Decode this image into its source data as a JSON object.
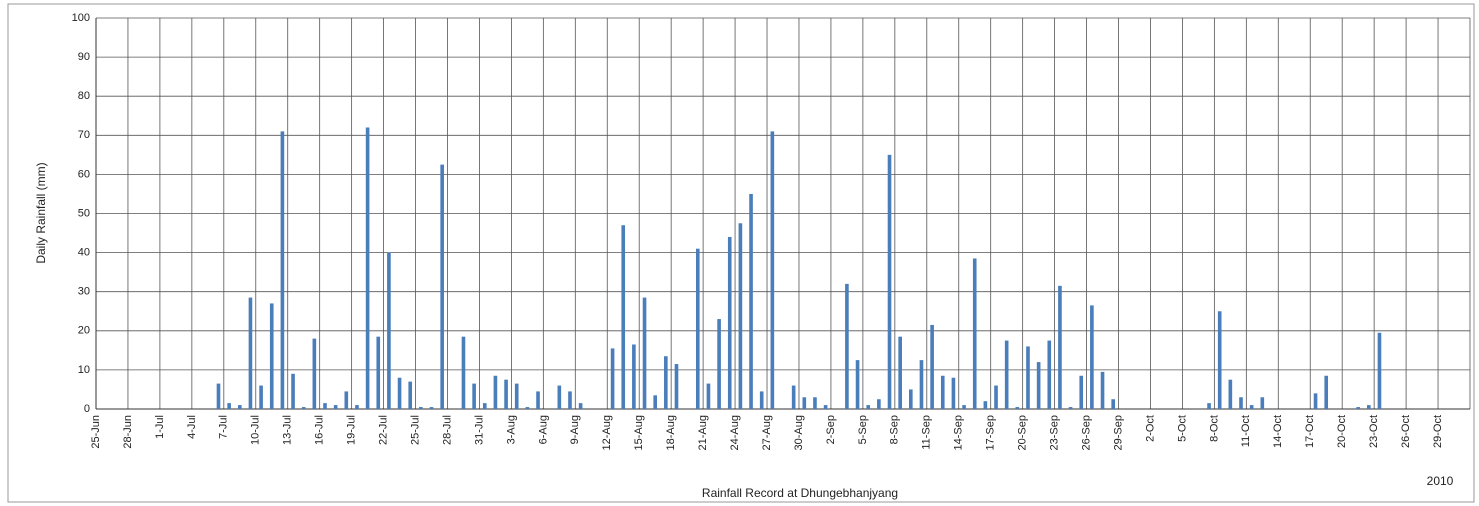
{
  "chart_data": {
    "type": "bar",
    "y_label": "Daily Rainfall (mm)",
    "x_label": "Rainfall Record at Dhungebhanjyang",
    "annotation": "2010",
    "color": "#4a7ebb",
    "ylim": [
      0,
      100
    ],
    "yticks": [
      0,
      10,
      20,
      30,
      40,
      50,
      60,
      70,
      80,
      90,
      100
    ],
    "grid": true,
    "categories": [
      "25-Jun",
      null,
      null,
      "28-Jun",
      null,
      null,
      "1-Jul",
      null,
      null,
      "4-Jul",
      null,
      null,
      "7-Jul",
      null,
      null,
      "10-Jul",
      null,
      null,
      "13-Jul",
      null,
      null,
      "16-Jul",
      null,
      null,
      "19-Jul",
      null,
      null,
      "22-Jul",
      null,
      null,
      "25-Jul",
      null,
      null,
      "28-Jul",
      null,
      null,
      "31-Jul",
      null,
      null,
      "3-Aug",
      null,
      null,
      "6-Aug",
      null,
      null,
      "9-Aug",
      null,
      null,
      "12-Aug",
      null,
      null,
      "15-Aug",
      null,
      null,
      "18-Aug",
      null,
      null,
      "21-Aug",
      null,
      null,
      "24-Aug",
      null,
      null,
      "27-Aug",
      null,
      null,
      "30-Aug",
      null,
      null,
      "2-Sep",
      null,
      null,
      "5-Sep",
      null,
      null,
      "8-Sep",
      null,
      null,
      "11-Sep",
      null,
      null,
      "14-Sep",
      null,
      null,
      "17-Sep",
      null,
      null,
      "20-Sep",
      null,
      null,
      "23-Sep",
      null,
      null,
      "26-Sep",
      null,
      null,
      "29-Sep",
      null,
      null,
      "2-Oct",
      null,
      null,
      "5-Oct",
      null,
      null,
      "8-Oct",
      null,
      null,
      "11-Oct",
      null,
      null,
      "14-Oct",
      null,
      null,
      "17-Oct",
      null,
      null,
      "20-Oct",
      null,
      null,
      "23-Oct",
      null,
      null,
      "26-Oct",
      null,
      null,
      "29-Oct",
      null,
      null
    ],
    "values": [
      0,
      0,
      0,
      0,
      0,
      0,
      0,
      0,
      0,
      0,
      0,
      6.5,
      1.5,
      1,
      28.5,
      6,
      27,
      71,
      9,
      0.5,
      18,
      1.5,
      1,
      4.5,
      1,
      72,
      18.5,
      40,
      8,
      7,
      0.5,
      0.5,
      62.5,
      0,
      18.5,
      6.5,
      1.5,
      8.5,
      7.5,
      6.5,
      0.5,
      4.5,
      0,
      6,
      4.5,
      1.5,
      0,
      0,
      15.5,
      47,
      16.5,
      28.5,
      3.5,
      13.5,
      11.5,
      0,
      41,
      6.5,
      23,
      44,
      47.5,
      55,
      4.5,
      71,
      0,
      6,
      3,
      3,
      1,
      0,
      32,
      12.5,
      1,
      2.5,
      65,
      18.5,
      5,
      12.5,
      21.5,
      8.5,
      8,
      1,
      38.5,
      2,
      6,
      17.5,
      0.5,
      16,
      12,
      17.5,
      31.5,
      0.5,
      8.5,
      26.5,
      9.5,
      2.5,
      0,
      0,
      0,
      0,
      0,
      0,
      0,
      0,
      1.5,
      25,
      7.5,
      3,
      1,
      3,
      0,
      0,
      0,
      0,
      4,
      8.5,
      0,
      0,
      0.5,
      1,
      19.5,
      0,
      0,
      0,
      0,
      0,
      0,
      0,
      0
    ]
  }
}
